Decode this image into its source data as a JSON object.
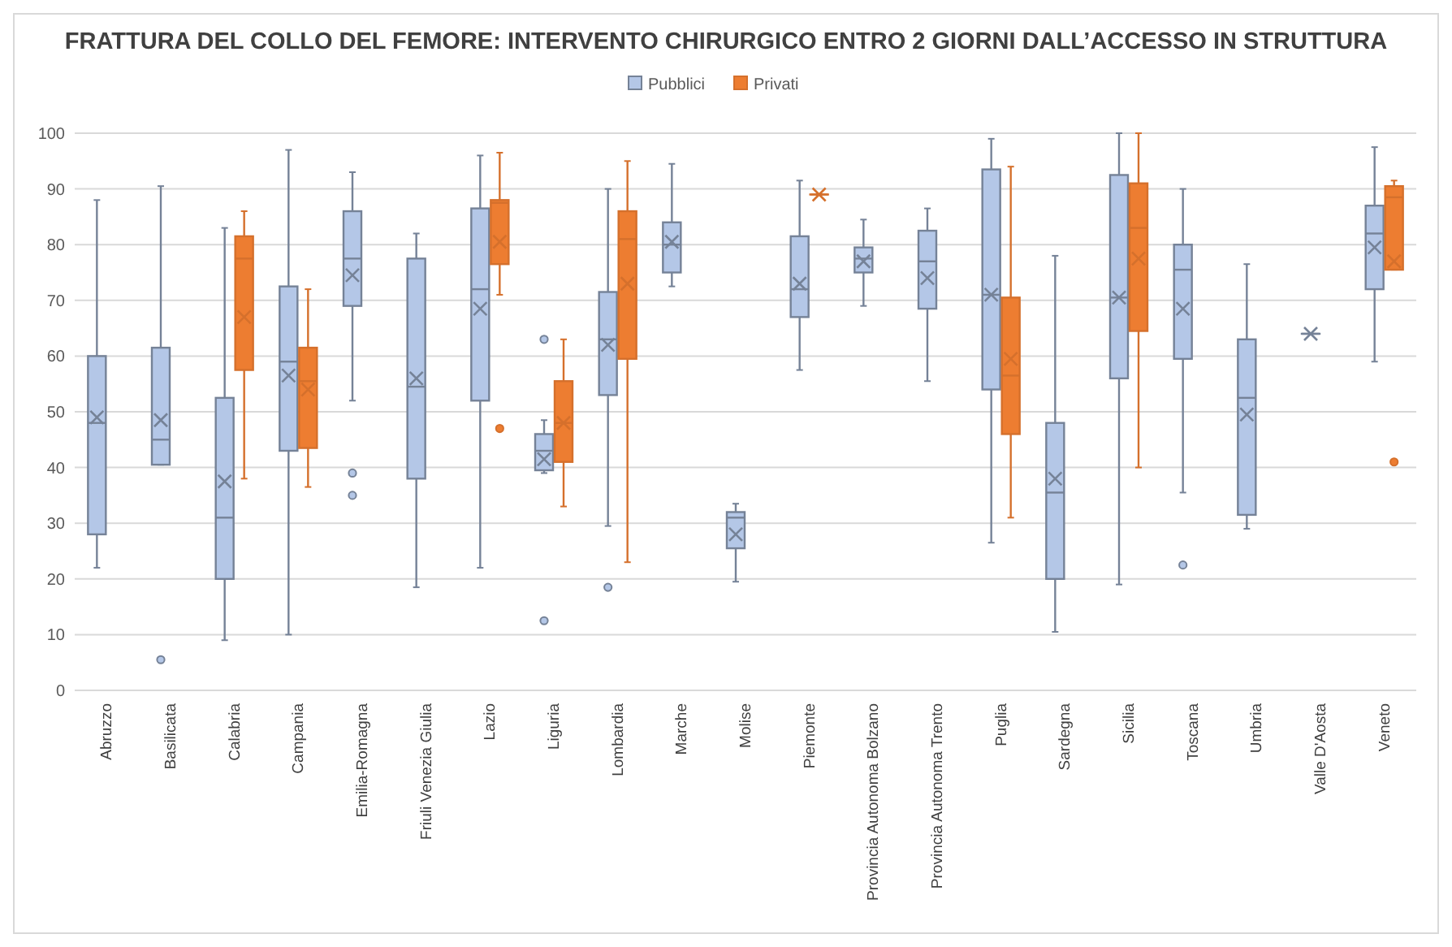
{
  "chart_data": {
    "type": "box",
    "title": "FRATTURA DEL COLLO DEL FEMORE: INTERVENTO CHIRURGICO ENTRO 2 GIORNI DALL’ACCESSO IN STRUTTURA",
    "categories": [
      "Abruzzo",
      "Basilicata",
      "Calabria",
      "Campania",
      "Emilia-Romagna",
      "Friuli Venezia Giulia",
      "Lazio",
      "Liguria",
      "Lombardia",
      "Marche",
      "Molise",
      "Piemonte",
      "Provincia Autonoma Bolzano",
      "Provincia Autonoma Trento",
      "Puglia",
      "Sardegna",
      "Sicilia",
      "Toscana",
      "Umbria",
      "Valle D'Aosta",
      "Veneto"
    ],
    "ylim": [
      0,
      100
    ],
    "yticks": [
      0,
      10,
      20,
      30,
      40,
      50,
      60,
      70,
      80,
      90,
      100
    ],
    "grid": "y",
    "legend": "top",
    "series": [
      {
        "name": "Pubblici",
        "color": "#b4c7e7",
        "boxes": [
          {
            "low": 22,
            "q1": 28,
            "median": 48,
            "q3": 60,
            "high": 88,
            "mean": 49
          },
          {
            "low": 40.5,
            "q1": 40.5,
            "median": 45,
            "q3": 61.5,
            "high": 90.5,
            "mean": 48.5,
            "outliers": [
              5.5
            ]
          },
          {
            "low": 9,
            "q1": 20,
            "median": 31,
            "q3": 52.5,
            "high": 83,
            "mean": 37.5
          },
          {
            "low": 10,
            "q1": 43,
            "median": 59,
            "q3": 72.5,
            "high": 97,
            "mean": 56.5
          },
          {
            "low": 52,
            "q1": 69,
            "median": 77.5,
            "q3": 86,
            "high": 93,
            "mean": 74.5,
            "outliers": [
              39,
              35
            ]
          },
          {
            "low": 18.5,
            "q1": 38,
            "median": 54.5,
            "q3": 77.5,
            "high": 82,
            "mean": 56
          },
          {
            "low": 22,
            "q1": 52,
            "median": 72,
            "q3": 86.5,
            "high": 96,
            "mean": 68.5
          },
          {
            "low": 39,
            "q1": 39.5,
            "median": 43,
            "q3": 46,
            "high": 48.5,
            "mean": 41.5,
            "outliers": [
              63,
              12.5
            ]
          },
          {
            "low": 29.5,
            "q1": 53,
            "median": 63,
            "q3": 71.5,
            "high": 90,
            "mean": 62,
            "outliers": [
              18.5
            ]
          },
          {
            "low": 72.5,
            "q1": 75,
            "median": 80,
            "q3": 84,
            "high": 94.5,
            "mean": 80.5
          },
          {
            "low": 19.5,
            "q1": 25.5,
            "median": 31,
            "q3": 32,
            "high": 33.5,
            "mean": 28
          },
          {
            "low": 57.5,
            "q1": 67,
            "median": 72,
            "q3": 81.5,
            "high": 91.5,
            "mean": 73
          },
          {
            "low": 69,
            "q1": 75,
            "median": 77.5,
            "q3": 79.5,
            "high": 84.5,
            "mean": 77
          },
          {
            "low": 55.5,
            "q1": 68.5,
            "median": 77,
            "q3": 82.5,
            "high": 86.5,
            "mean": 74
          },
          {
            "low": 26.5,
            "q1": 54,
            "median": 71,
            "q3": 93.5,
            "high": 99,
            "mean": 71
          },
          {
            "low": 10.5,
            "q1": 20,
            "median": 35.5,
            "q3": 48,
            "high": 78,
            "mean": 38
          },
          {
            "low": 19,
            "q1": 56,
            "median": 70.5,
            "q3": 92.5,
            "high": 100,
            "mean": 70.5
          },
          {
            "low": 35.5,
            "q1": 59.5,
            "median": 75.5,
            "q3": 80,
            "high": 90,
            "mean": 68.5,
            "outliers": [
              22.5
            ]
          },
          {
            "low": 29,
            "q1": 31.5,
            "median": 52.5,
            "q3": 63,
            "high": 76.5,
            "mean": 49.5
          },
          {
            "low": 64,
            "q1": 64,
            "median": 64,
            "q3": 64,
            "high": 64,
            "mean": 64
          },
          {
            "low": 59,
            "q1": 72,
            "median": 82,
            "q3": 87,
            "high": 97.5,
            "mean": 79.5
          }
        ]
      },
      {
        "name": "Privati",
        "color": "#ed7d31",
        "boxes": [
          null,
          null,
          {
            "low": 38,
            "q1": 57.5,
            "median": 77.5,
            "q3": 81.5,
            "high": 86,
            "mean": 67
          },
          {
            "low": 36.5,
            "q1": 43.5,
            "median": 55.5,
            "q3": 61.5,
            "high": 72,
            "mean": 54
          },
          null,
          null,
          {
            "low": 71,
            "q1": 76.5,
            "median": 87.5,
            "q3": 88,
            "high": 96.5,
            "mean": 80.5,
            "outliers": [
              47
            ]
          },
          {
            "low": 33,
            "q1": 41,
            "median": 48,
            "q3": 55.5,
            "high": 63,
            "mean": 48
          },
          {
            "low": 23,
            "q1": 59.5,
            "median": 81,
            "q3": 86,
            "high": 95,
            "mean": 73
          },
          null,
          null,
          {
            "low": 89,
            "q1": 89,
            "median": 89,
            "q3": 89,
            "high": 89,
            "mean": 89
          },
          null,
          null,
          {
            "low": 31,
            "q1": 46,
            "median": 56.5,
            "q3": 70.5,
            "high": 94,
            "mean": 59.5
          },
          null,
          {
            "low": 40,
            "q1": 64.5,
            "median": 83,
            "q3": 91,
            "high": 100,
            "mean": 77.5
          },
          null,
          null,
          null,
          {
            "low": 75.5,
            "q1": 75.5,
            "median": 88.5,
            "q3": 90.5,
            "high": 91.5,
            "mean": 77,
            "outliers": [
              41
            ]
          }
        ]
      }
    ]
  }
}
